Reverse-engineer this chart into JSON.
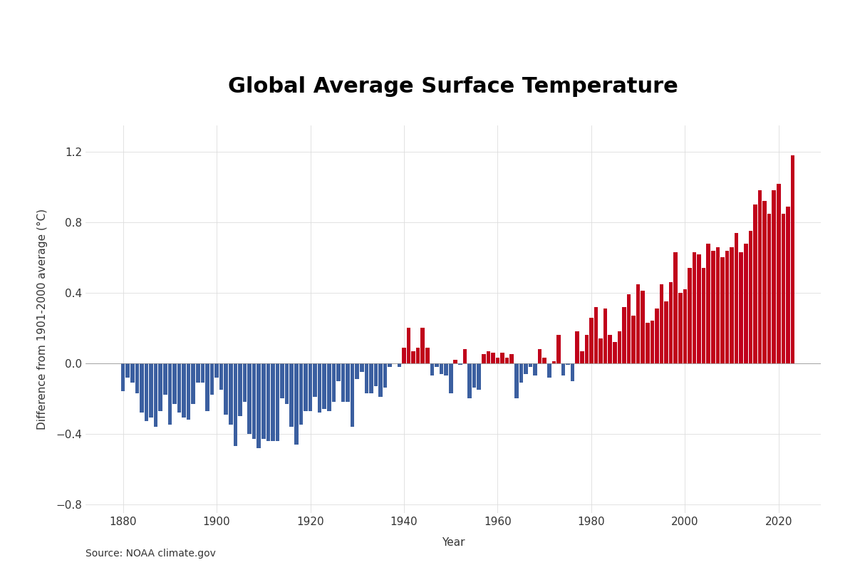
{
  "title": "Global Average Surface Temperature",
  "ylabel": "Difference from 1901-2000 average (°C)",
  "xlabel": "Year",
  "source": "Source: NOAA climate.gov",
  "ylim": [
    -0.85,
    1.35
  ],
  "yticks": [
    -0.8,
    -0.4,
    0.0,
    0.4,
    0.8,
    1.2
  ],
  "color_positive": "#C0001A",
  "color_negative": "#3B5FA0",
  "background_color": "#FFFFFF",
  "grid_color": "#CCCCCC",
  "title_fontsize": 22,
  "label_fontsize": 11,
  "tick_fontsize": 11,
  "years": [
    1880,
    1881,
    1882,
    1883,
    1884,
    1885,
    1886,
    1887,
    1888,
    1889,
    1890,
    1891,
    1892,
    1893,
    1894,
    1895,
    1896,
    1897,
    1898,
    1899,
    1900,
    1901,
    1902,
    1903,
    1904,
    1905,
    1906,
    1907,
    1908,
    1909,
    1910,
    1911,
    1912,
    1913,
    1914,
    1915,
    1916,
    1917,
    1918,
    1919,
    1920,
    1921,
    1922,
    1923,
    1924,
    1925,
    1926,
    1927,
    1928,
    1929,
    1930,
    1931,
    1932,
    1933,
    1934,
    1935,
    1936,
    1937,
    1938,
    1939,
    1940,
    1941,
    1942,
    1943,
    1944,
    1945,
    1946,
    1947,
    1948,
    1949,
    1950,
    1951,
    1952,
    1953,
    1954,
    1955,
    1956,
    1957,
    1958,
    1959,
    1960,
    1961,
    1962,
    1963,
    1964,
    1965,
    1966,
    1967,
    1968,
    1969,
    1970,
    1971,
    1972,
    1973,
    1974,
    1975,
    1976,
    1977,
    1978,
    1979,
    1980,
    1981,
    1982,
    1983,
    1984,
    1985,
    1986,
    1987,
    1988,
    1989,
    1990,
    1991,
    1992,
    1993,
    1994,
    1995,
    1996,
    1997,
    1998,
    1999,
    2000,
    2001,
    2002,
    2003,
    2004,
    2005,
    2006,
    2007,
    2008,
    2009,
    2010,
    2011,
    2012,
    2013,
    2014,
    2015,
    2016,
    2017,
    2018,
    2019,
    2020,
    2021,
    2022,
    2023
  ],
  "values": [
    -0.16,
    -0.08,
    -0.11,
    -0.17,
    -0.28,
    -0.33,
    -0.31,
    -0.36,
    -0.27,
    -0.18,
    -0.35,
    -0.23,
    -0.28,
    -0.31,
    -0.32,
    -0.23,
    -0.11,
    -0.11,
    -0.27,
    -0.18,
    -0.08,
    -0.15,
    -0.29,
    -0.35,
    -0.47,
    -0.3,
    -0.22,
    -0.4,
    -0.43,
    -0.48,
    -0.43,
    -0.44,
    -0.44,
    -0.44,
    -0.2,
    -0.23,
    -0.36,
    -0.46,
    -0.35,
    -0.27,
    -0.27,
    -0.19,
    -0.28,
    -0.26,
    -0.27,
    -0.22,
    -0.1,
    -0.22,
    -0.22,
    -0.36,
    -0.09,
    -0.05,
    -0.17,
    -0.17,
    -0.13,
    -0.19,
    -0.14,
    -0.02,
    -0.0,
    -0.02,
    0.09,
    0.2,
    0.07,
    0.09,
    0.2,
    0.09,
    -0.07,
    -0.02,
    -0.06,
    -0.07,
    -0.17,
    0.02,
    -0.01,
    0.08,
    -0.2,
    -0.14,
    -0.15,
    0.05,
    0.07,
    0.06,
    0.03,
    0.06,
    0.03,
    0.05,
    -0.2,
    -0.11,
    -0.06,
    -0.02,
    -0.07,
    0.08,
    0.03,
    -0.08,
    0.01,
    0.16,
    -0.07,
    -0.01,
    -0.1,
    0.18,
    0.07,
    0.16,
    0.26,
    0.32,
    0.14,
    0.31,
    0.16,
    0.12,
    0.18,
    0.32,
    0.39,
    0.27,
    0.45,
    0.41,
    0.23,
    0.24,
    0.31,
    0.45,
    0.35,
    0.46,
    0.63,
    0.4,
    0.42,
    0.54,
    0.63,
    0.62,
    0.54,
    0.68,
    0.64,
    0.66,
    0.6,
    0.64,
    0.66,
    0.74,
    0.63,
    0.68,
    0.75,
    0.9,
    0.98,
    0.92,
    0.85,
    0.98,
    1.02,
    0.85,
    0.89,
    1.18
  ]
}
